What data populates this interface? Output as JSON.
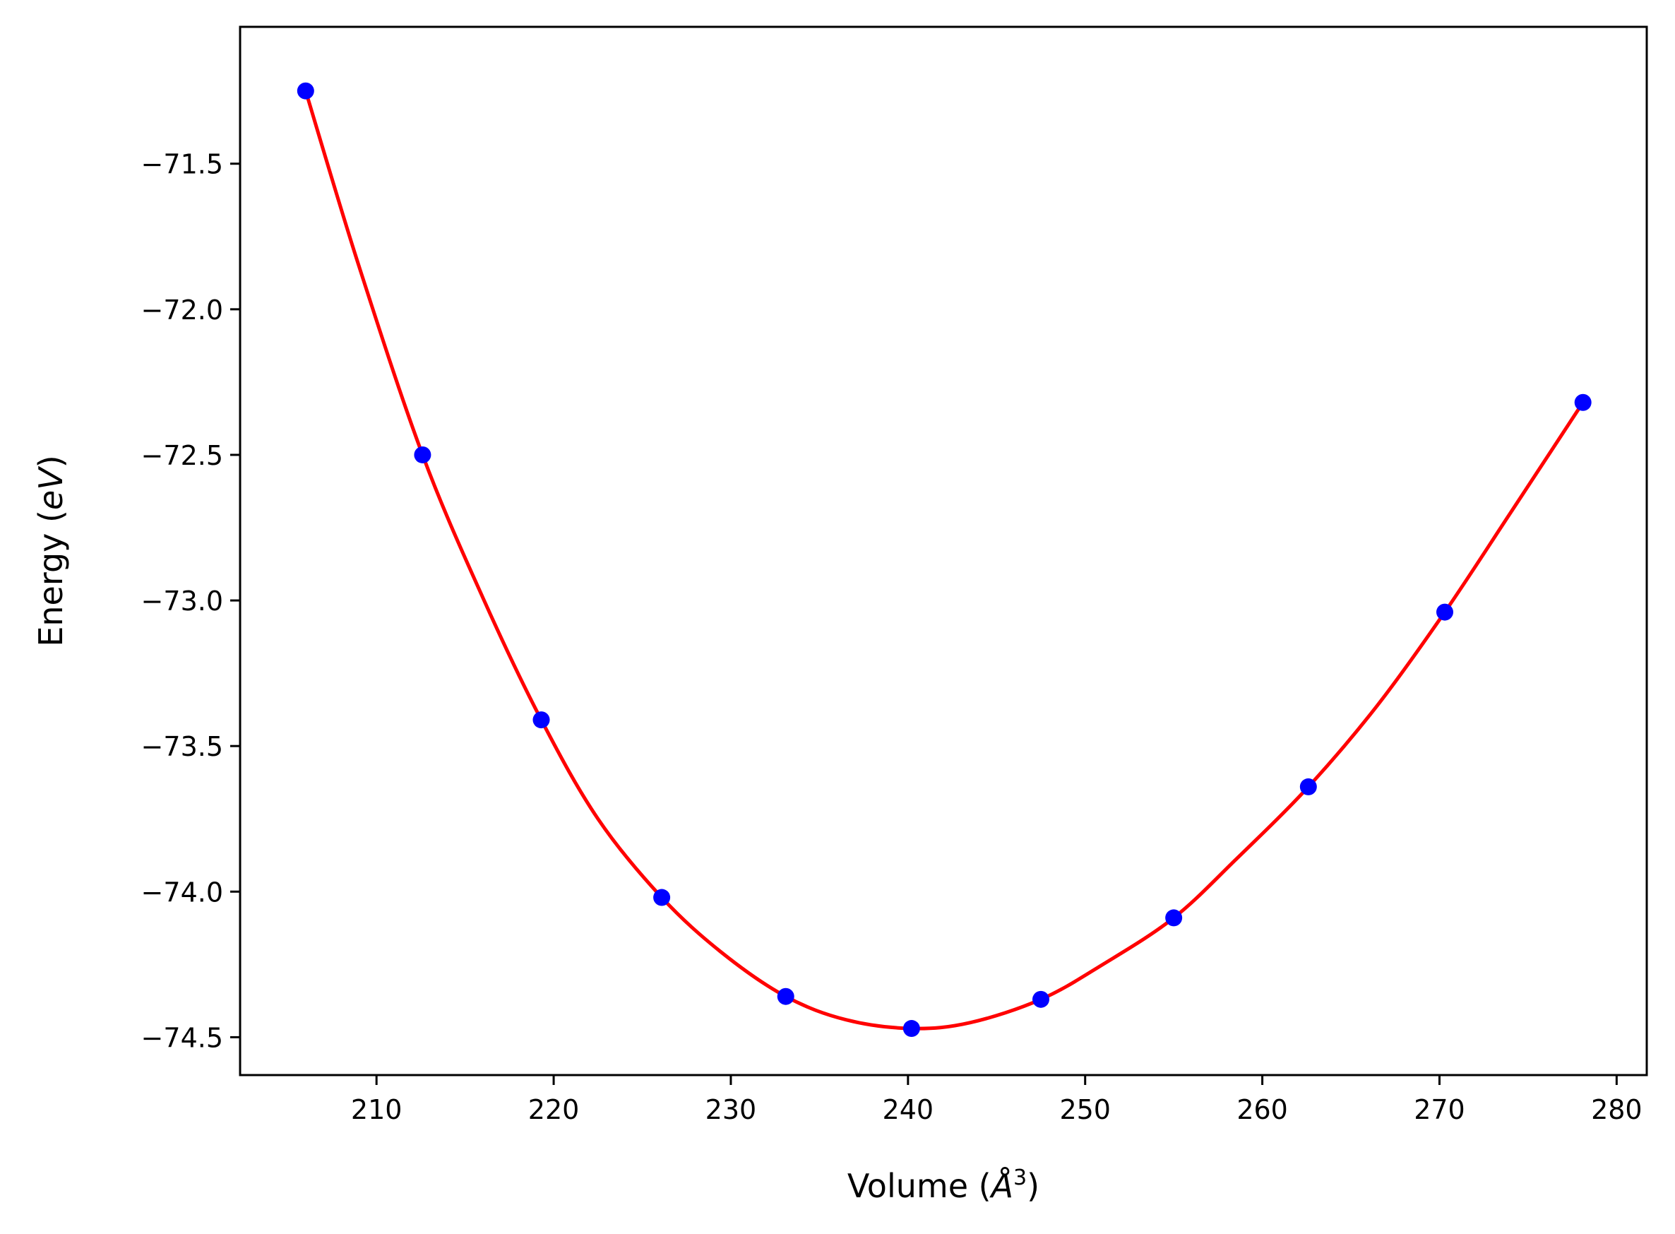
{
  "chart_data": {
    "type": "scatter",
    "xlabel_text": "Volume (",
    "xlabel_unit": "Å",
    "xlabel_sup": "3",
    "xlabel_close": ")",
    "ylabel_text": "Energy (",
    "ylabel_unit": "eV",
    "ylabel_close": ")",
    "xlim": [
      202.3,
      281.7
    ],
    "ylim": [
      -74.63,
      -71.03
    ],
    "x_ticks": [
      210,
      220,
      230,
      240,
      250,
      260,
      270,
      280
    ],
    "y_ticks": [
      -71.5,
      -72.0,
      -72.5,
      -73.0,
      -73.5,
      -74.0,
      -74.5
    ],
    "y_tick_labels": [
      "−71.5",
      "−72.0",
      "−72.5",
      "−73.0",
      "−73.5",
      "−74.0",
      "−74.5"
    ],
    "grid": false,
    "series": [
      {
        "kind": "points",
        "color": "#0000ff",
        "x": [
          206.0,
          212.6,
          219.3,
          226.1,
          233.1,
          240.2,
          247.5,
          255.0,
          262.6,
          270.3,
          278.1
        ],
        "y": [
          -71.25,
          -72.5,
          -73.41,
          -74.02,
          -74.36,
          -74.47,
          -74.37,
          -74.09,
          -73.64,
          -73.04,
          -72.32
        ]
      },
      {
        "kind": "fit-curve",
        "color": "#ff0000",
        "x": [
          206.0,
          209.0,
          212.6,
          216.0,
          219.3,
          222.5,
          226.1,
          229.5,
          233.1,
          236.5,
          240.2,
          243.5,
          247.5,
          251.0,
          255.0,
          258.5,
          262.6,
          266.5,
          270.3,
          274.0,
          278.1
        ],
        "y": [
          -71.25,
          -71.85,
          -72.5,
          -72.99,
          -73.41,
          -73.75,
          -74.02,
          -74.21,
          -74.36,
          -74.44,
          -74.47,
          -74.45,
          -74.37,
          -74.25,
          -74.09,
          -73.89,
          -73.64,
          -73.36,
          -73.04,
          -72.7,
          -72.32
        ]
      }
    ]
  }
}
